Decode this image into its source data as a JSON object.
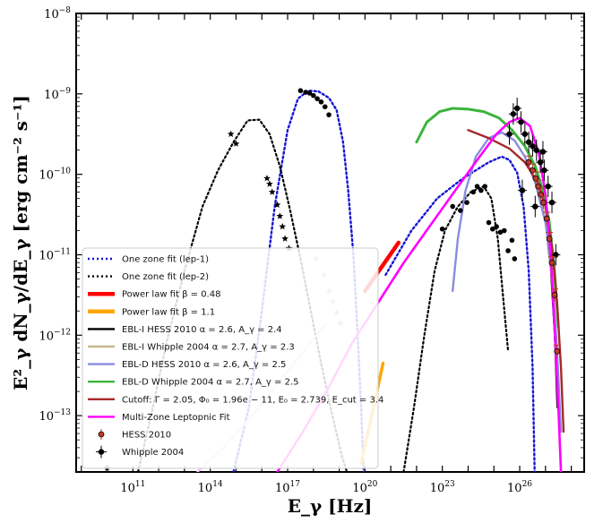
{
  "chart_data": {
    "type": "line",
    "title": "",
    "xlabel": "E_γ [Hz]",
    "ylabel": "E²_γ dN_γ/dE_γ [erg cm⁻² s⁻¹]",
    "x_log": true,
    "y_log": true,
    "xlim_log10": [
      8.8,
      28.5
    ],
    "ylim_log10": [
      -13.7,
      -8.0
    ],
    "x_tick_labels": [
      {
        "exp": 11,
        "label": "10^11"
      },
      {
        "exp": 14,
        "label": "10^14"
      },
      {
        "exp": 17,
        "label": "10^17"
      },
      {
        "exp": 20,
        "label": "10^20"
      },
      {
        "exp": 23,
        "label": "10^23"
      },
      {
        "exp": 26,
        "label": "10^26"
      }
    ],
    "y_tick_labels": [
      {
        "exp": -8,
        "label": "10^-8"
      },
      {
        "exp": -9,
        "label": "10^-9"
      },
      {
        "exp": -10,
        "label": "10^-10"
      },
      {
        "exp": -11,
        "label": "10^-11"
      },
      {
        "exp": -12,
        "label": "10^-12"
      },
      {
        "exp": -13,
        "label": "10^-13"
      }
    ],
    "legend": {
      "placement": "lower-left",
      "entries": [
        {
          "label": "One zone fit (lep-1)",
          "color": "#1515d6",
          "style": "dotted"
        },
        {
          "label": "One zone fit (lep-2)",
          "color": "#000000",
          "style": "dotted"
        },
        {
          "label": "Power law fit β = 0.48",
          "color": "#ff0000",
          "style": "thick"
        },
        {
          "label": "Power law fit β = 1.1",
          "color": "#ffa500",
          "style": "thick"
        },
        {
          "label": "EBL-I HESS 2010 α = 2.6, A_γ = 2.4",
          "color": "#000000",
          "style": "solid"
        },
        {
          "label": "EBL-I Whipple 2004 α = 2.7, A_γ = 2.3",
          "color": "#c8b98c",
          "style": "solid"
        },
        {
          "label": "EBL-D HESS 2010 α = 2.6, A_γ = 2.5",
          "color": "#8c8ce0",
          "style": "solid"
        },
        {
          "label": "EBL-D Whipple 2004 α = 2.7, A_γ = 2.5",
          "color": "#3cb43c",
          "style": "solid"
        },
        {
          "label": "Cutoff: Γ = 2.05, Φ₀ = 1.96e − 11, E₀ = 2.739, E_cut = 3.4",
          "color": "#a52a2a",
          "style": "solid"
        },
        {
          "label": "Multi-Zone Leptopnic Fit",
          "color": "#ff00ff",
          "style": "solid"
        },
        {
          "label": "HESS 2010",
          "color": "#c0392b",
          "style": "marker-red"
        },
        {
          "label": "Whipple 2004",
          "color": "#000000",
          "style": "marker-black"
        }
      ]
    },
    "series": [
      {
        "name": "One zone fit (lep-1)",
        "color": "#1515d6",
        "dash": "2,3",
        "width": 2.4,
        "points": [
          [
            14.9,
            -13.7
          ],
          [
            15.5,
            -12.9
          ],
          [
            16.0,
            -11.7
          ],
          [
            16.5,
            -10.4
          ],
          [
            17.0,
            -9.45
          ],
          [
            17.4,
            -9.06
          ],
          [
            17.8,
            -8.96
          ],
          [
            18.2,
            -8.97
          ],
          [
            18.6,
            -9.05
          ],
          [
            18.9,
            -9.2
          ],
          [
            19.15,
            -9.6
          ],
          [
            19.35,
            -10.2
          ],
          [
            19.55,
            -11.0
          ],
          [
            19.7,
            -11.9
          ],
          [
            19.85,
            -12.9
          ],
          [
            19.95,
            -13.7
          ]
        ]
      },
      {
        "name": "One zone fit (lep-1) high",
        "color": "#1515d6",
        "dash": "2,3",
        "width": 2.4,
        "points": [
          [
            20.8,
            -11.25
          ],
          [
            21.8,
            -10.7
          ],
          [
            22.8,
            -10.3
          ],
          [
            23.8,
            -10.05
          ],
          [
            24.8,
            -9.85
          ],
          [
            25.3,
            -9.78
          ],
          [
            25.6,
            -9.82
          ],
          [
            25.9,
            -9.98
          ],
          [
            26.15,
            -10.4
          ],
          [
            26.35,
            -11.2
          ],
          [
            26.5,
            -12.4
          ],
          [
            26.58,
            -13.7
          ]
        ]
      },
      {
        "name": "One zone fit (lep-2)",
        "color": "#000000",
        "dash": "2,3",
        "width": 2.2,
        "points": [
          [
            11.2,
            -13.7
          ],
          [
            11.7,
            -13.0
          ],
          [
            12.3,
            -12.1
          ],
          [
            13.0,
            -11.2
          ],
          [
            13.7,
            -10.4
          ],
          [
            14.3,
            -9.95
          ],
          [
            14.9,
            -9.6
          ],
          [
            15.45,
            -9.33
          ],
          [
            15.9,
            -9.32
          ],
          [
            16.3,
            -9.5
          ],
          [
            16.7,
            -9.9
          ],
          [
            17.1,
            -10.45
          ],
          [
            17.5,
            -11.05
          ],
          [
            17.9,
            -11.7
          ],
          [
            18.3,
            -12.35
          ],
          [
            18.7,
            -12.95
          ],
          [
            19.1,
            -13.5
          ],
          [
            19.3,
            -13.7
          ]
        ]
      },
      {
        "name": "One zone fit (lep-2) high",
        "color": "#000000",
        "dash": "2,3",
        "width": 2.2,
        "points": [
          [
            21.5,
            -13.7
          ],
          [
            21.9,
            -12.9
          ],
          [
            22.3,
            -12.0
          ],
          [
            22.7,
            -11.2
          ],
          [
            23.1,
            -10.7
          ],
          [
            23.6,
            -10.4
          ],
          [
            24.1,
            -10.22
          ],
          [
            24.6,
            -10.15
          ],
          [
            24.9,
            -10.3
          ],
          [
            25.15,
            -10.8
          ],
          [
            25.35,
            -11.5
          ],
          [
            25.55,
            -12.2
          ]
        ]
      },
      {
        "name": "Power law fit β = 0.48",
        "color": "#ff0000",
        "dash": "",
        "width": 4.5,
        "points": [
          [
            20.0,
            -11.45
          ],
          [
            21.3,
            -10.85
          ]
        ]
      },
      {
        "name": "Power law fit β = 1.1",
        "color": "#ffa500",
        "dash": "",
        "width": 3.5,
        "points": [
          [
            19.85,
            -13.6
          ],
          [
            20.7,
            -12.35
          ]
        ]
      },
      {
        "name": "EBL-I HESS 2010 α = 2.6, A_γ = 2.4",
        "color": "#000000",
        "dash": "",
        "width": 1.5,
        "points": [
          [
            26.8,
            -10.3
          ],
          [
            27.0,
            -10.6
          ],
          [
            27.2,
            -11.2
          ],
          [
            27.35,
            -12.0
          ],
          [
            27.45,
            -12.9
          ]
        ]
      },
      {
        "name": "EBL-I Whipple 2004 α = 2.7, A_γ = 2.3",
        "color": "#c8b98c",
        "dash": "",
        "width": 2.4,
        "points": [
          [
            26.6,
            -10.1
          ],
          [
            26.9,
            -10.4
          ],
          [
            27.1,
            -10.8
          ],
          [
            27.3,
            -11.5
          ],
          [
            27.4,
            -12.2
          ]
        ]
      },
      {
        "name": "EBL-D HESS 2010 α = 2.6, A_γ = 2.5",
        "color": "#8c8ce0",
        "dash": "",
        "width": 2.4,
        "points": [
          [
            23.4,
            -11.45
          ],
          [
            23.6,
            -10.8
          ],
          [
            23.9,
            -10.2
          ],
          [
            24.3,
            -9.78
          ],
          [
            24.8,
            -9.55
          ],
          [
            25.3,
            -9.48
          ],
          [
            25.8,
            -9.58
          ],
          [
            26.2,
            -9.78
          ],
          [
            26.6,
            -10.1
          ],
          [
            27.0,
            -10.6
          ],
          [
            27.25,
            -11.2
          ],
          [
            27.45,
            -12.2
          ],
          [
            27.6,
            -13.2
          ]
        ]
      },
      {
        "name": "EBL-D Whipple 2004 α = 2.7, A_γ = 2.5",
        "color": "#3cb43c",
        "dash": "",
        "width": 3.0,
        "points": [
          [
            22.0,
            -9.6
          ],
          [
            22.4,
            -9.35
          ],
          [
            22.9,
            -9.22
          ],
          [
            23.4,
            -9.18
          ],
          [
            24.0,
            -9.19
          ],
          [
            24.6,
            -9.22
          ],
          [
            25.2,
            -9.3
          ],
          [
            25.7,
            -9.45
          ],
          [
            26.2,
            -9.65
          ],
          [
            26.6,
            -9.9
          ],
          [
            26.9,
            -10.2
          ],
          [
            27.15,
            -10.6
          ],
          [
            27.35,
            -11.2
          ],
          [
            27.5,
            -11.9
          ]
        ]
      },
      {
        "name": "Cutoff: Γ = 2.05, Φ₀ = 1.96e − 11, E₀ = 2.739, E_cut = 3.4",
        "color": "#a52a2a",
        "dash": "",
        "width": 2.4,
        "points": [
          [
            24.0,
            -9.45
          ],
          [
            24.8,
            -9.55
          ],
          [
            25.6,
            -9.68
          ],
          [
            26.2,
            -9.85
          ],
          [
            26.7,
            -10.1
          ],
          [
            27.0,
            -10.4
          ],
          [
            27.25,
            -10.9
          ],
          [
            27.45,
            -11.6
          ],
          [
            27.6,
            -12.4
          ],
          [
            27.7,
            -13.2
          ]
        ]
      },
      {
        "name": "Multi-Zone Leptopnic Fit (faint)",
        "color": "#f7c5f7",
        "dash": "",
        "width": 2.4,
        "points": [
          [
            13.5,
            -13.7
          ],
          [
            14.5,
            -13.4
          ],
          [
            15.5,
            -13.05
          ],
          [
            16.5,
            -12.65
          ],
          [
            17.5,
            -12.25
          ],
          [
            18.5,
            -11.85
          ]
        ]
      },
      {
        "name": "Multi-Zone Leptopnic Fit",
        "color": "#ff00ff",
        "dash": "",
        "width": 2.6,
        "points": [
          [
            16.6,
            -13.7
          ],
          [
            17.5,
            -13.25
          ],
          [
            18.5,
            -12.7
          ],
          [
            19.5,
            -12.1
          ],
          [
            20.5,
            -11.6
          ],
          [
            21.5,
            -11.1
          ],
          [
            22.5,
            -10.65
          ],
          [
            23.5,
            -10.2
          ],
          [
            24.4,
            -9.8
          ],
          [
            25.1,
            -9.5
          ],
          [
            25.6,
            -9.35
          ],
          [
            26.0,
            -9.3
          ],
          [
            26.4,
            -9.4
          ],
          [
            26.75,
            -9.75
          ],
          [
            27.0,
            -10.25
          ],
          [
            27.2,
            -11.0
          ],
          [
            27.35,
            -11.9
          ],
          [
            27.5,
            -12.9
          ],
          [
            27.6,
            -13.7
          ]
        ]
      }
    ],
    "scatter_groups": [
      {
        "name": "radio-optical data",
        "color": "#000000",
        "marker": "star",
        "points": [
          [
            10.0,
            -13.65
          ],
          [
            14.8,
            -9.5
          ],
          [
            15.0,
            -9.62
          ],
          [
            16.2,
            -10.05
          ],
          [
            16.3,
            -10.12
          ],
          [
            16.4,
            -10.22
          ],
          [
            16.6,
            -10.38
          ],
          [
            16.7,
            -10.52
          ],
          [
            16.8,
            -10.65
          ],
          [
            16.9,
            -10.8
          ],
          [
            17.05,
            -10.92
          ]
        ]
      },
      {
        "name": "X-ray data",
        "color": "#000000",
        "marker": "dot",
        "points": [
          [
            17.5,
            -8.96
          ],
          [
            17.7,
            -8.98
          ],
          [
            17.85,
            -8.99
          ],
          [
            18.0,
            -9.02
          ],
          [
            18.15,
            -9.06
          ],
          [
            18.3,
            -9.1
          ],
          [
            18.45,
            -9.16
          ],
          [
            18.6,
            -9.26
          ]
        ]
      },
      {
        "name": "grey data",
        "color": "#b0b0b0",
        "marker": "star",
        "points": [
          [
            18.1,
            -11.05
          ],
          [
            18.4,
            -11.25
          ],
          [
            18.6,
            -11.45
          ],
          [
            18.75,
            -11.58
          ],
          [
            18.9,
            -11.72
          ],
          [
            19.05,
            -11.85
          ]
        ]
      },
      {
        "name": "Fermi data",
        "color": "#000000",
        "marker": "dot",
        "points": [
          [
            23.0,
            -10.68
          ],
          [
            23.4,
            -10.4
          ],
          [
            23.7,
            -10.45
          ],
          [
            23.95,
            -10.35
          ],
          [
            24.2,
            -10.22
          ],
          [
            24.35,
            -10.15
          ],
          [
            24.5,
            -10.2
          ],
          [
            24.65,
            -10.15
          ],
          [
            24.8,
            -10.6
          ],
          [
            24.95,
            -10.68
          ],
          [
            25.1,
            -10.65
          ],
          [
            25.25,
            -10.72
          ],
          [
            25.4,
            -10.7
          ],
          [
            25.55,
            -10.95
          ],
          [
            25.7,
            -10.82
          ],
          [
            25.8,
            -11.05
          ]
        ]
      }
    ],
    "hess_2010": {
      "name": "HESS 2010",
      "color": "#c0392b",
      "points": [
        [
          26.35,
          -9.85
        ],
        [
          26.5,
          -9.95
        ],
        [
          26.62,
          -10.05
        ],
        [
          26.72,
          -10.15
        ],
        [
          26.82,
          -10.25
        ],
        [
          26.92,
          -10.35
        ],
        [
          27.05,
          -10.55
        ],
        [
          27.15,
          -10.8
        ],
        [
          27.25,
          -11.1
        ],
        [
          27.35,
          -11.5
        ],
        [
          27.45,
          -12.2
        ]
      ]
    },
    "whipple_2004": {
      "name": "Whipple 2004",
      "color": "#000000",
      "points": [
        [
          25.6,
          -9.5
        ],
        [
          25.75,
          -9.25
        ],
        [
          25.9,
          -9.18
        ],
        [
          26.05,
          -9.35
        ],
        [
          26.2,
          -9.5
        ],
        [
          26.35,
          -9.6
        ],
        [
          26.5,
          -9.65
        ],
        [
          26.65,
          -9.7
        ],
        [
          26.8,
          -9.85
        ],
        [
          26.95,
          -9.95
        ],
        [
          27.1,
          -10.15
        ],
        [
          27.25,
          -10.35
        ],
        [
          26.1,
          -10.2
        ],
        [
          26.6,
          -10.4
        ],
        [
          27.4,
          -11.0
        ],
        [
          26.9,
          -9.72
        ]
      ]
    }
  }
}
